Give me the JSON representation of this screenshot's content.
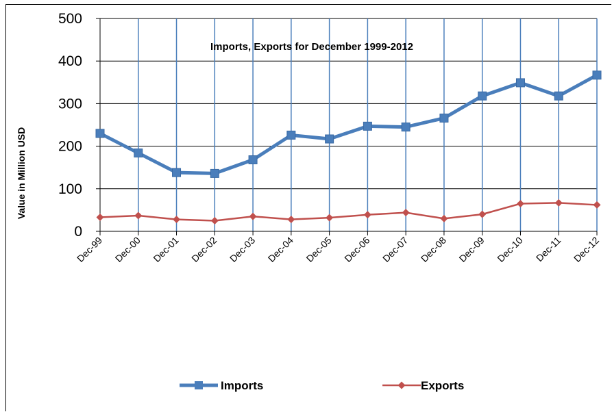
{
  "chart_data": {
    "type": "line",
    "title": "Imports, Exports for December 1999-2012",
    "xlabel": "",
    "ylabel": "Value in  Million  USD",
    "categories": [
      "Dec-99",
      "Dec-00",
      "Dec-01",
      "Dec-02",
      "Dec-03",
      "Dec-04",
      "Dec-05",
      "Dec-06",
      "Dec-07",
      "Dec-08",
      "Dec-09",
      "Dec-10",
      "Dec-11",
      "Dec-12"
    ],
    "ylim": [
      0,
      500
    ],
    "yticks": [
      0,
      100,
      200,
      300,
      400,
      500
    ],
    "grid": true,
    "legend_position": "bottom",
    "series": [
      {
        "name": "Imports",
        "color": "#4a7ebb",
        "marker": "square",
        "values": [
          230,
          184,
          138,
          136,
          168,
          226,
          217,
          247,
          245,
          266,
          318,
          349,
          318,
          367
        ]
      },
      {
        "name": "Exports",
        "color": "#c0504d",
        "marker": "diamond",
        "values": [
          33,
          37,
          28,
          25,
          35,
          28,
          32,
          39,
          44,
          30,
          40,
          65,
          67,
          62
        ]
      }
    ]
  }
}
